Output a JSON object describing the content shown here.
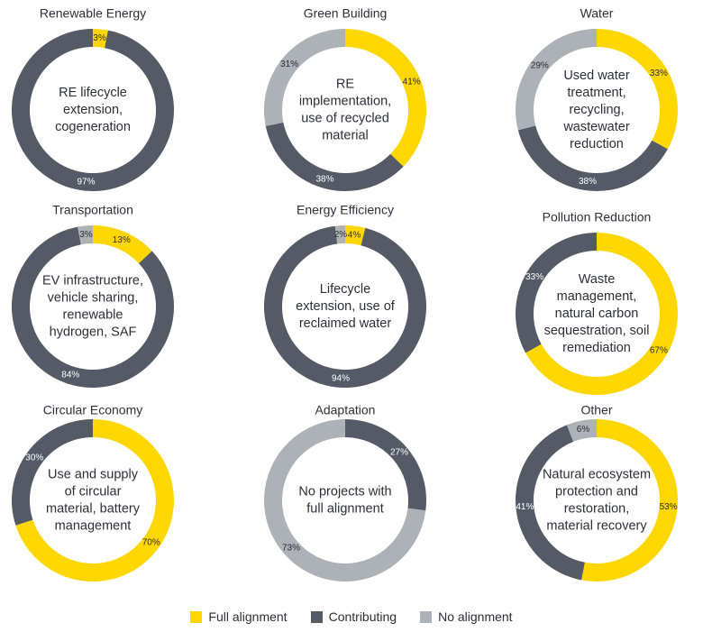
{
  "colors": {
    "full": "#FFD700",
    "contributing": "#545B66",
    "none": "#ADB1B8"
  },
  "legend": [
    {
      "label": "Full alignment",
      "color_key": "full"
    },
    {
      "label": "Contributing",
      "color_key": "contributing"
    },
    {
      "label": "No alignment",
      "color_key": "none"
    }
  ],
  "chart_data": [
    {
      "type": "pie",
      "title": "Renewable Energy",
      "center_text": [
        "RE lifecycle",
        "extension,",
        "cogeneration"
      ],
      "slices": [
        {
          "category": "full",
          "value": 3,
          "label": "3%"
        },
        {
          "category": "contributing",
          "value": 97,
          "label": "97%"
        }
      ]
    },
    {
      "type": "pie",
      "title": "Green Building",
      "center_text": [
        "RE",
        "implementation,",
        "use of recycled",
        "material"
      ],
      "slices": [
        {
          "category": "full",
          "value": 41,
          "label": "41%"
        },
        {
          "category": "contributing",
          "value": 38,
          "label": "38%"
        },
        {
          "category": "none",
          "value": 31,
          "label": "31%"
        }
      ]
    },
    {
      "type": "pie",
      "title": "Water",
      "center_text": [
        "Used water",
        "treatment,",
        "recycling,",
        "wastewater",
        "reduction"
      ],
      "slices": [
        {
          "category": "full",
          "value": 33,
          "label": "33%"
        },
        {
          "category": "contributing",
          "value": 38,
          "label": "38%"
        },
        {
          "category": "none",
          "value": 29,
          "label": "29%"
        }
      ]
    },
    {
      "type": "pie",
      "title": "Transportation",
      "center_text": [
        "EV infrastructure,",
        "vehicle sharing,",
        "renewable",
        "hydrogen, SAF"
      ],
      "slices": [
        {
          "category": "full",
          "value": 13,
          "label": "13%"
        },
        {
          "category": "contributing",
          "value": 84,
          "label": "84%"
        },
        {
          "category": "none",
          "value": 3,
          "label": "3%"
        }
      ]
    },
    {
      "type": "pie",
      "title": "Energy Efficiency",
      "center_text": [
        "Lifecycle",
        "extension, use of",
        "reclaimed water"
      ],
      "slices": [
        {
          "category": "full",
          "value": 4,
          "label": "4%"
        },
        {
          "category": "contributing",
          "value": 94,
          "label": "94%"
        },
        {
          "category": "none",
          "value": 2,
          "label": "2%"
        }
      ]
    },
    {
      "type": "pie",
      "title": "Pollution Reduction",
      "center_text": [
        "Waste",
        "management,",
        "natural carbon",
        "sequestration, soil",
        "remediation"
      ],
      "slices": [
        {
          "category": "full",
          "value": 67,
          "label": "67%"
        },
        {
          "category": "contributing",
          "value": 33,
          "label": "33%"
        }
      ]
    },
    {
      "type": "pie",
      "title": "Circular Economy",
      "center_text": [
        "Use and supply",
        "of circular",
        "material, battery",
        "management"
      ],
      "slices": [
        {
          "category": "full",
          "value": 70,
          "label": "70%"
        },
        {
          "category": "contributing",
          "value": 30,
          "label": "30%"
        }
      ]
    },
    {
      "type": "pie",
      "title": "Adaptation",
      "center_text": [
        "No projects with",
        "full alignment"
      ],
      "slices": [
        {
          "category": "contributing",
          "value": 27,
          "label": "27%"
        },
        {
          "category": "none",
          "value": 73,
          "label": "73%"
        }
      ]
    },
    {
      "type": "pie",
      "title": "Other",
      "center_text": [
        "Natural ecosystem",
        "protection and",
        "restoration,",
        "material recovery"
      ],
      "slices": [
        {
          "category": "full",
          "value": 53,
          "label": "53%"
        },
        {
          "category": "contributing",
          "value": 41,
          "label": "41%"
        },
        {
          "category": "none",
          "value": 6,
          "label": "6%"
        }
      ]
    }
  ]
}
